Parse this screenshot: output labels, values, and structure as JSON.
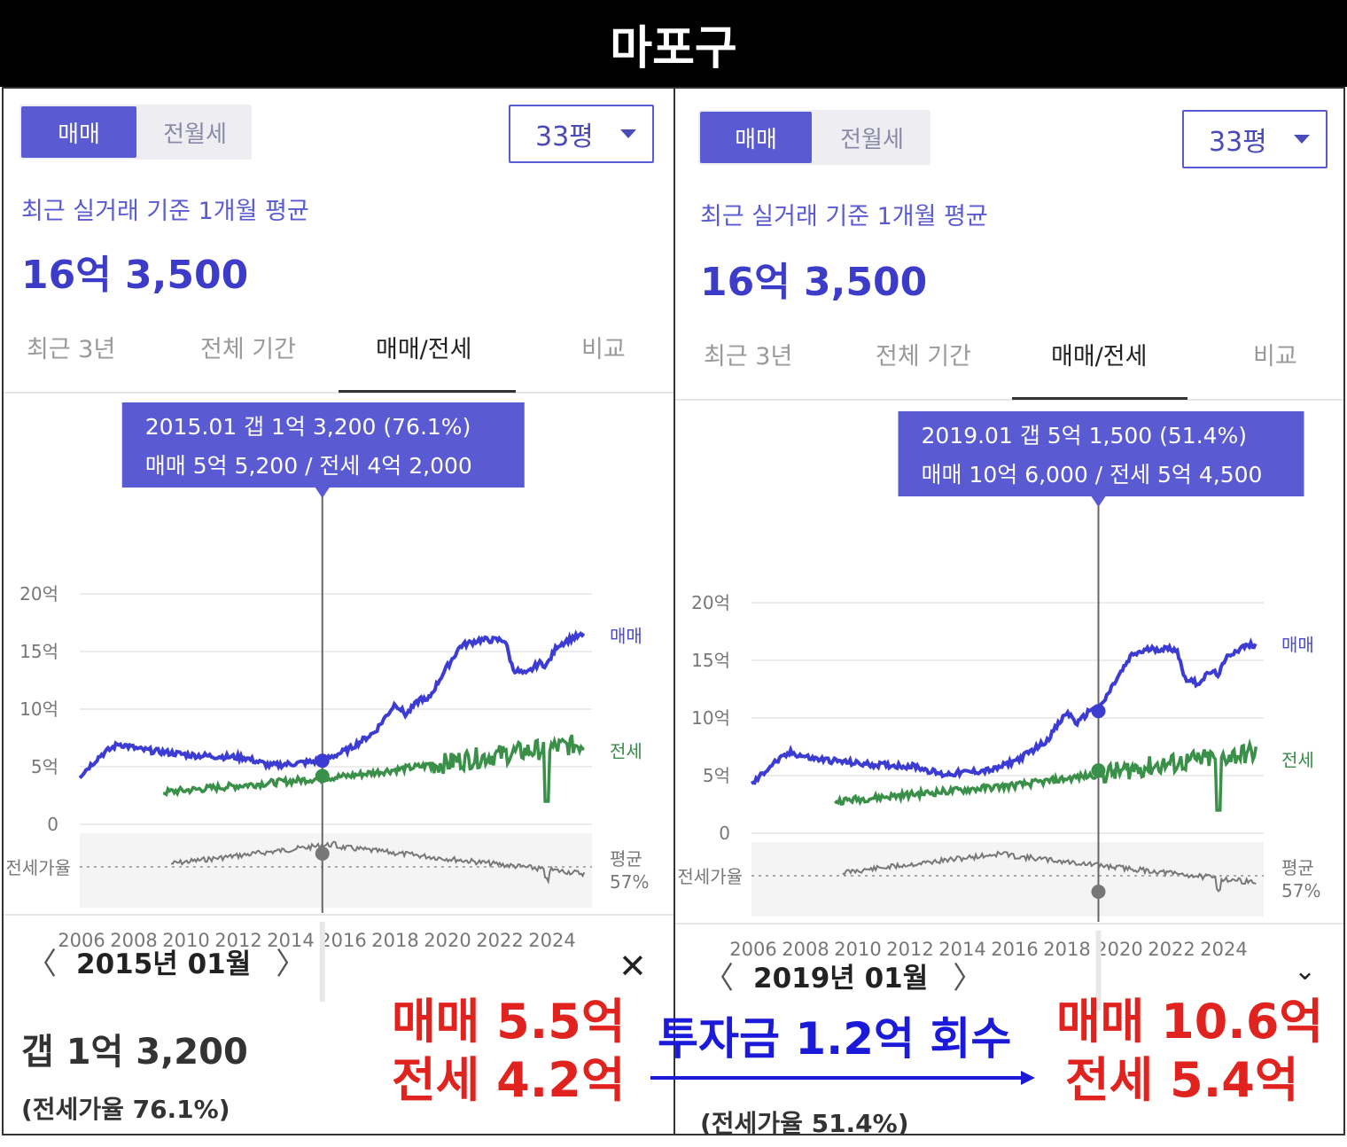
{
  "title": "마포구",
  "left": {
    "segment": {
      "sale": "매매",
      "rent": "전월세"
    },
    "size": "33평",
    "basis": "최근 실거래 기준 1개월 평균",
    "price": "16억 3,500",
    "tabs": [
      "최근 3년",
      "전체 기간",
      "매매/전세",
      "비교"
    ],
    "tooltip": {
      "line1": "2015.01  갭 1억 3,200 (76.1%)",
      "line2": "매매 5억 5,200 / 전세 4억 2,000"
    },
    "month": "2015년 01월",
    "gap": "갭 1억 3,200",
    "ratio": "(전세가율 76.1%)"
  },
  "right": {
    "segment": {
      "sale": "매매",
      "rent": "전월세"
    },
    "size": "33평",
    "basis": "최근 실거래 기준 1개월 평균",
    "price": "16억 3,500",
    "tabs": [
      "최근 3년",
      "전체 기간",
      "매매/전세",
      "비교"
    ],
    "tooltip": {
      "line1": "2019.01  갭 5억 1,500 (51.4%)",
      "line2": "매매 10억 6,000 / 전세 5억 4,500"
    },
    "month": "2019년 01월",
    "ratio": "(전세가율 51.4%)"
  },
  "chart": {
    "y_ticks": [
      "20억",
      "15억",
      "10억",
      "5억",
      "0"
    ],
    "ratio_label": "전세가율",
    "avg_label": "평균",
    "avg_value": "57%",
    "series_sale": "매매",
    "series_jeonse": "전세",
    "years": [
      "2006",
      "2008",
      "2010",
      "2012",
      "2014",
      "2016",
      "2018",
      "2020",
      "2022",
      "2024"
    ]
  },
  "annotations": {
    "left_line1": "매매 5.5억",
    "left_line2": "전세 4.2억",
    "arrow_text": "투자금 1.2억 회수",
    "right_line1": "매매 10.6억",
    "right_line2": "전세 5.4억"
  },
  "colors": {
    "sale": "#3c3cd2",
    "jeonse": "#3a9048",
    "accent": "#5a5ad2",
    "note_red": "#e0231f",
    "note_blue": "#1a1ad8"
  }
}
